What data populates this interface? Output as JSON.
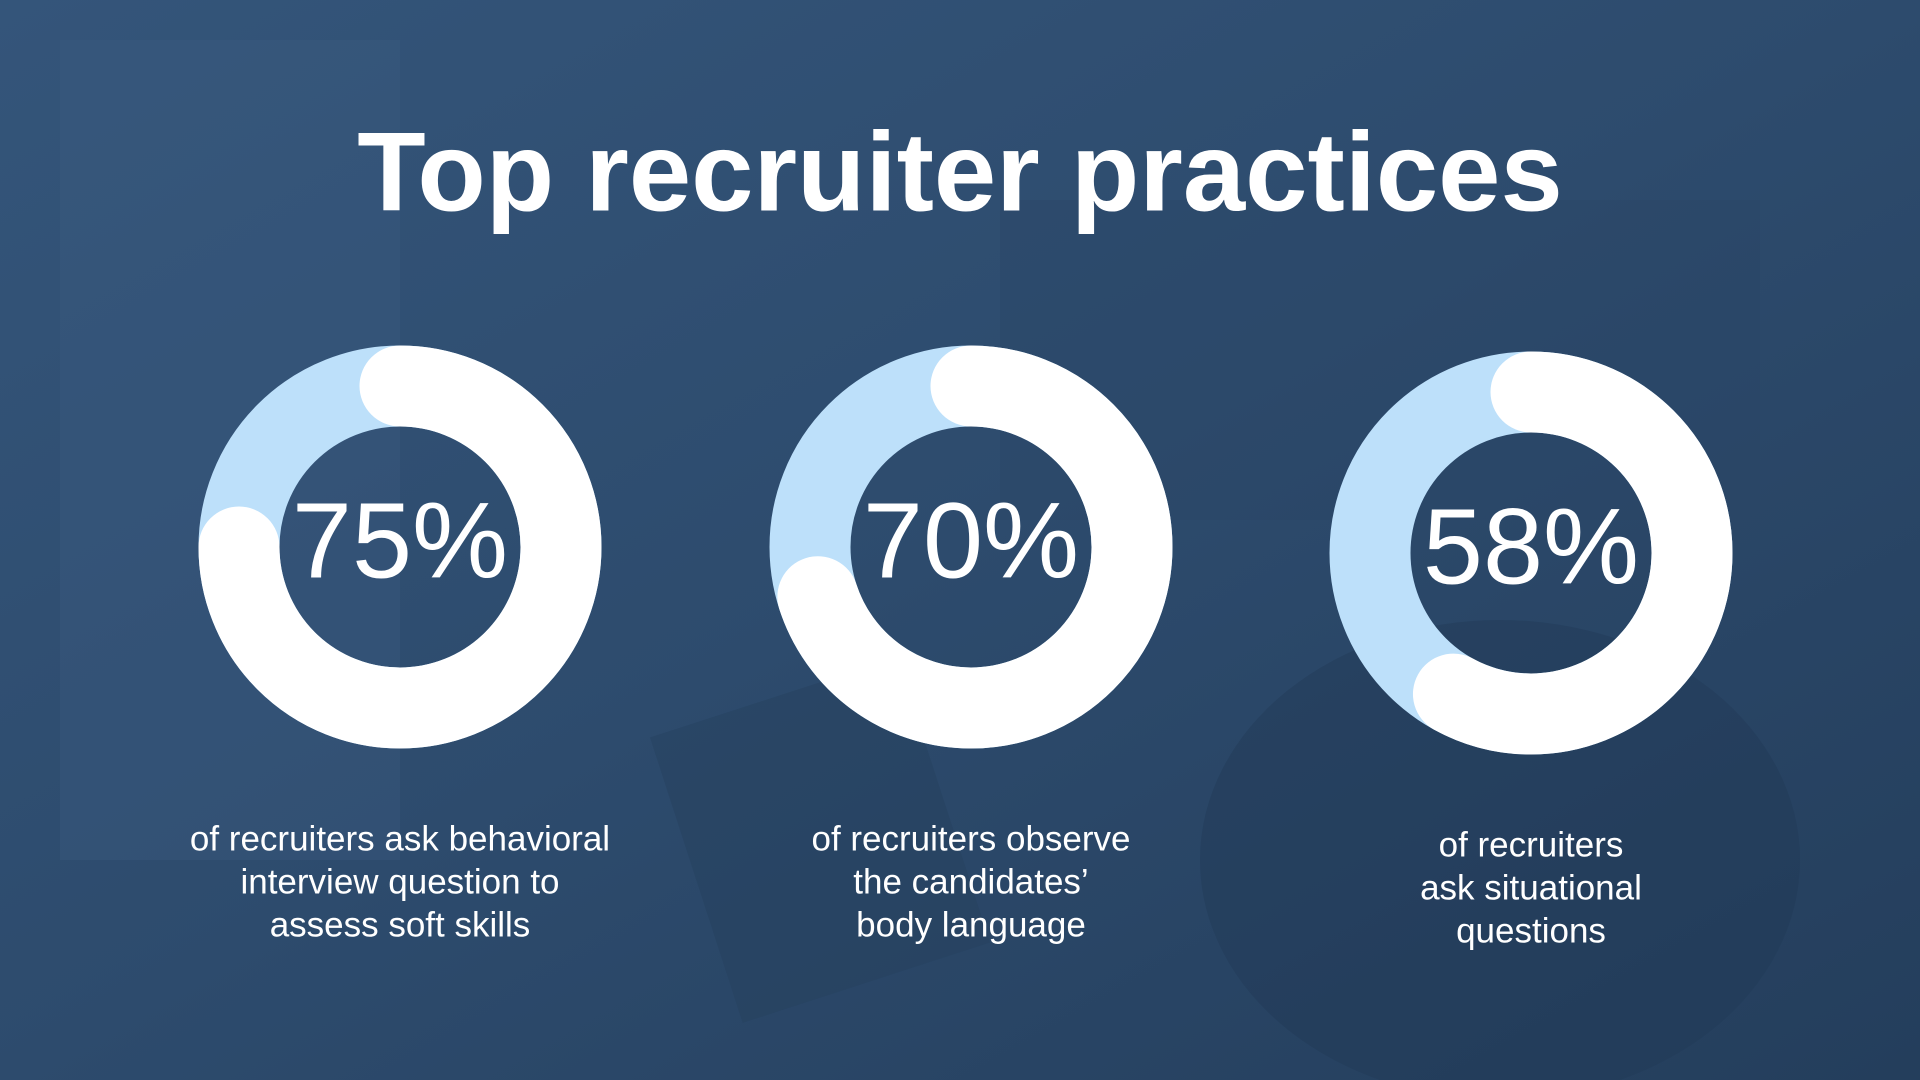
{
  "title": "Top recruiter practices",
  "chart_data": [
    {
      "type": "donut",
      "values": [
        75
      ],
      "value_labels": [
        "75%"
      ],
      "color": "#ffffff",
      "track_color": "#bde0fa",
      "caption": [
        "of recruiters ask behavioral",
        "interview question to",
        "assess soft skills"
      ]
    },
    {
      "type": "donut",
      "values": [
        70
      ],
      "value_labels": [
        "70%"
      ],
      "color": "#ffffff",
      "track_color": "#bde0fa",
      "caption": [
        "of recruiters observe",
        "the candidates’",
        "body language"
      ]
    },
    {
      "type": "donut",
      "values": [
        58
      ],
      "value_labels": [
        "58%"
      ],
      "color": "#ffffff",
      "track_color": "#bde0fa",
      "caption": [
        "of recruiters",
        "ask situational",
        "questions"
      ]
    }
  ]
}
